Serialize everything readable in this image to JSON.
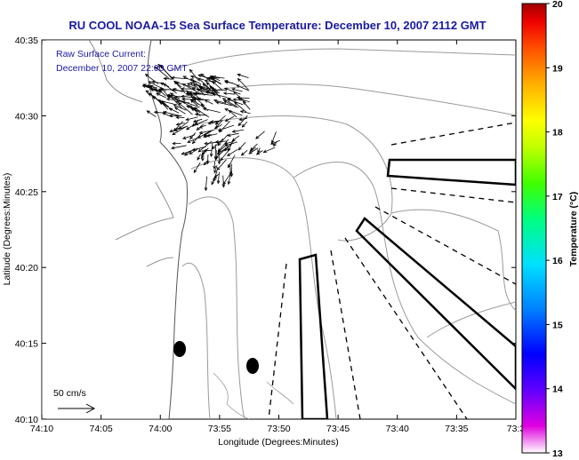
{
  "title": "RU COOL  NOAA-15  Sea Surface Temperature:  December 10, 2007 2112 GMT",
  "subtitle_line1": "Raw Surface Current:",
  "subtitle_line2": "December 10, 2007 22:00 GMT",
  "scale_label": "50 cm/s",
  "x_axis": {
    "label": "Longitude (Degrees:Minutes)",
    "ticks": [
      "74:10",
      "74:05",
      "74:00",
      "73:55",
      "73:50",
      "73:45",
      "73:40",
      "73:35",
      "73:3"
    ]
  },
  "y_axis": {
    "label": "Latitude (Degrees:Minutes)",
    "ticks": [
      "40:35",
      "40:30",
      "40:25",
      "40:20",
      "40:15",
      "40:10"
    ]
  },
  "colorbar": {
    "label": "Temperature (°C)",
    "ticks": [
      "20",
      "19",
      "18",
      "17",
      "16",
      "15",
      "14",
      "13"
    ],
    "range": [
      13,
      20
    ]
  },
  "colors": {
    "title_text": "#1a1aa0",
    "contour": "#9a9a9a",
    "coast": "#555555",
    "vectors": "#000000"
  },
  "chart_data": {
    "type": "map",
    "projection": "lon-lat",
    "lon_range_deg": [
      -74.1667,
      -73.5
    ],
    "lat_range_deg": [
      40.1667,
      40.5833
    ],
    "moorings": [
      {
        "name": "mooring-1",
        "lon": "73:59",
        "lat": "40:14.5"
      },
      {
        "name": "mooring-2",
        "lon": "73:52.5",
        "lat": "40:13.5"
      }
    ],
    "annotations": [
      "solid-box-north",
      "solid-box-middle",
      "solid-box-south",
      "dashed-transects"
    ]
  }
}
